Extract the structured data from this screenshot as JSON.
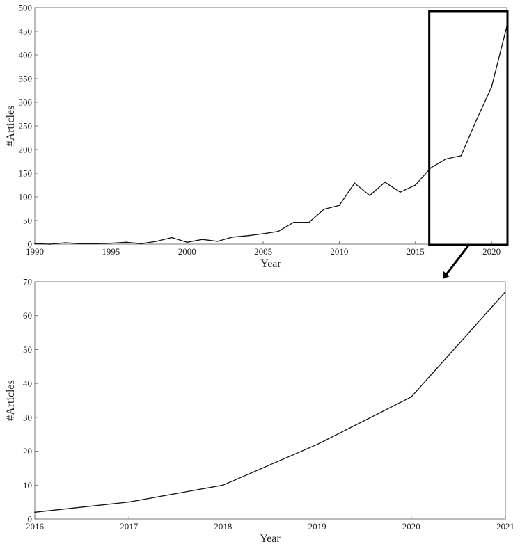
{
  "colors": {
    "line": "#111111",
    "axis": "#555555",
    "text": "#222222",
    "box": "#000000"
  },
  "chart_data": [
    {
      "type": "line",
      "xlabel": "Year",
      "ylabel": "#Articles",
      "xlim": [
        1990,
        2021
      ],
      "ylim": [
        0,
        500
      ],
      "xticks": [
        1990,
        1995,
        2000,
        2005,
        2010,
        2015,
        2020
      ],
      "yticks": [
        0,
        50,
        100,
        150,
        200,
        250,
        300,
        350,
        400,
        450,
        500
      ],
      "grid": false,
      "series": [
        {
          "x": [
            1990,
            1991,
            1992,
            1993,
            1994,
            1995,
            1996,
            1997,
            1998,
            1999,
            2000,
            2001,
            2002,
            2003,
            2004,
            2005,
            2006,
            2007,
            2008,
            2009,
            2010,
            2011,
            2012,
            2013,
            2014,
            2015,
            2016,
            2017,
            2018,
            2019,
            2020,
            2021
          ],
          "y": [
            1,
            0,
            3,
            1,
            1,
            2,
            4,
            1,
            6,
            14,
            4,
            10,
            6,
            15,
            18,
            22,
            27,
            46,
            46,
            74,
            82,
            129,
            103,
            131,
            110,
            125,
            161,
            180,
            187,
            262,
            332,
            460
          ]
        }
      ],
      "highlight_range": [
        2016,
        2021
      ]
    },
    {
      "type": "line",
      "xlabel": "Year",
      "ylabel": "#Articles",
      "xlim": [
        2016,
        2021
      ],
      "ylim": [
        0,
        70
      ],
      "xticks": [
        2016,
        2017,
        2018,
        2019,
        2020,
        2021
      ],
      "yticks": [
        0,
        10,
        20,
        30,
        40,
        50,
        60,
        70
      ],
      "grid": false,
      "series": [
        {
          "x": [
            2016,
            2017,
            2018,
            2019,
            2020,
            2021
          ],
          "y": [
            2,
            5,
            10,
            22,
            36,
            67
          ]
        }
      ]
    }
  ]
}
